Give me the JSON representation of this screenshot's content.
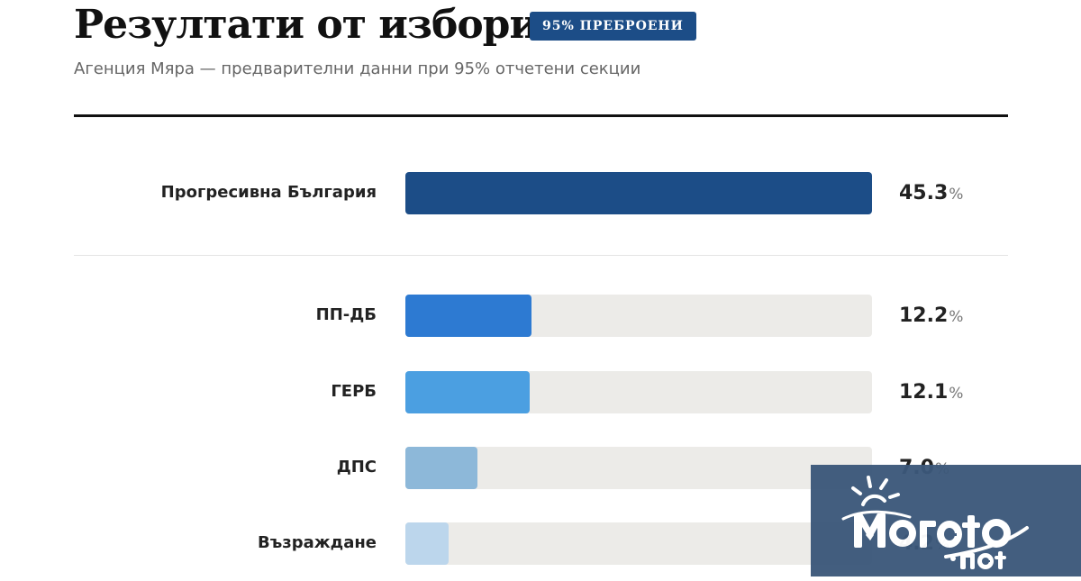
{
  "header": {
    "title": "Резултати от избори",
    "badge": "95% ПРЕБРОЕНИ",
    "subtitle": "Агенция Мяра — предварителни данни при 95% отчетени секции"
  },
  "chart_data": {
    "type": "bar",
    "orientation": "horizontal",
    "categories": [
      "Прогресивна България",
      "ПП-ДБ",
      "ГЕРБ",
      "ДПС",
      "Възраждане"
    ],
    "values": [
      45.3,
      12.2,
      12.1,
      7.0,
      4.2
    ],
    "value_suffix": "%",
    "xlim": [
      0,
      45.3
    ],
    "colors": [
      "#1c4d87",
      "#2d7ad2",
      "#4b9fe1",
      "#8db8d9",
      "#bcd6ec"
    ]
  },
  "watermark": {
    "text": "Moreto.net"
  }
}
